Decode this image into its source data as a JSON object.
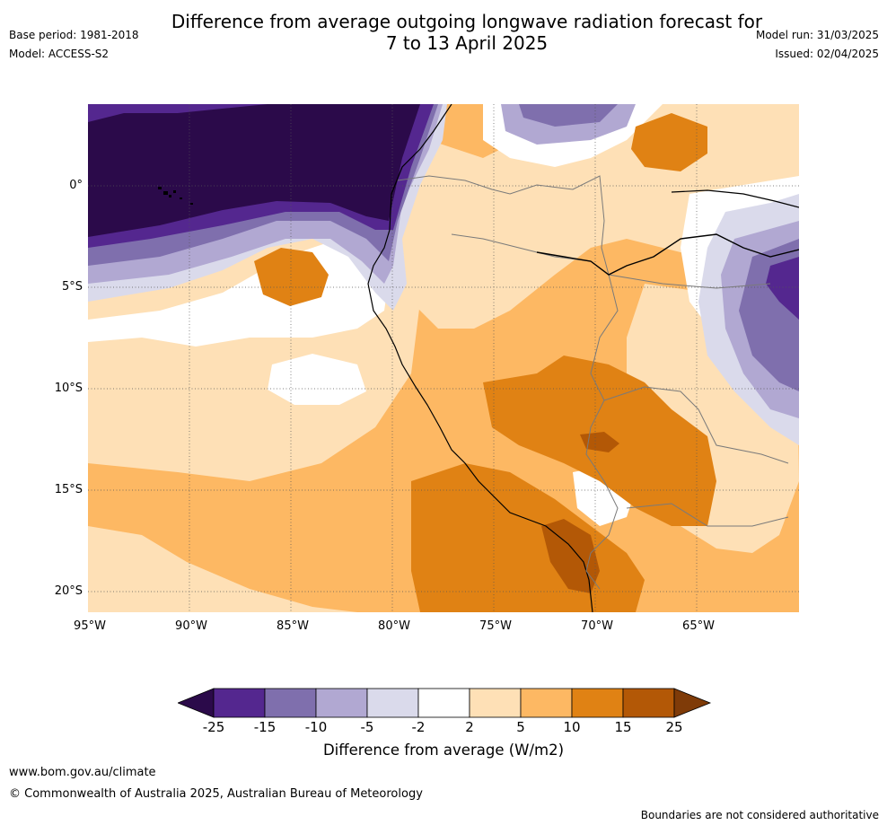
{
  "header": {
    "title_line1": "Difference from average outgoing longwave radiation forecast for",
    "title_line2": "7 to 13 April 2025",
    "base_period": "Base period: 1981-2018",
    "model": "Model: ACCESS-S2",
    "model_run": "Model run: 31/03/2025",
    "issued": "Issued: 02/04/2025"
  },
  "map": {
    "latitude_labels": [
      "0°",
      "5°S",
      "10°S",
      "15°S",
      "20°S"
    ],
    "longitude_labels": [
      "95°W",
      "90°W",
      "85°W",
      "80°W",
      "75°W",
      "70°W",
      "65°W"
    ],
    "extent": {
      "lon_min": -95,
      "lon_max": -60,
      "lat_min": -21,
      "lat_max": 4
    },
    "gridlines": true
  },
  "legend": {
    "ticks": [
      "-25",
      "-15",
      "-10",
      "-5",
      "-2",
      "2",
      "5",
      "10",
      "15",
      "25"
    ],
    "colors": [
      "#2b0a4a",
      "#54278f",
      "#7f6fad",
      "#b1a8d2",
      "#dadaeb",
      "#ffffff",
      "#fee0b6",
      "#fdb863",
      "#e08214",
      "#b35806",
      "#7f3b08"
    ],
    "title": "Difference from average (W/m2)"
  },
  "footer": {
    "url": "www.bom.gov.au/climate",
    "copyright": "© Commonwealth of Australia 2025, Australian Bureau of Meteorology",
    "disclaimer": "Boundaries are not considered authoritative"
  }
}
